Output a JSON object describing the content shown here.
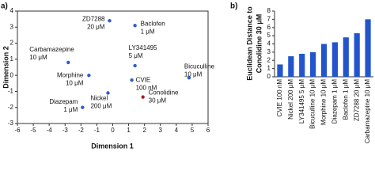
{
  "chart_data": [
    {
      "type": "scatter",
      "panel_label": "a)",
      "xlabel": "Dimension 1",
      "ylabel": "Dimension 2",
      "xlim": [
        -6,
        6
      ],
      "xticks": [
        -6,
        -5,
        -4,
        -3,
        -2,
        -1,
        0,
        1,
        2,
        3,
        4,
        5,
        6
      ],
      "ylim": [
        -3,
        4
      ],
      "yticks": [
        -3,
        -2,
        -1,
        0,
        1,
        2,
        3,
        4
      ],
      "point_labels": [
        [
          "ZD7288",
          "20 μM"
        ],
        [
          "Baclofen",
          "1 μM"
        ],
        [
          "Carbamazepine",
          "10 μM"
        ],
        [
          "LY341495",
          "5 μM"
        ],
        [
          "Morphine",
          "10 μM"
        ],
        [
          "CVIE",
          "100 nM"
        ],
        [
          "Bicuculline",
          "10 μM"
        ],
        [
          "Nickel",
          "200 μM"
        ],
        [
          "Conolidine",
          "30 μM"
        ],
        [
          "Diazepam",
          "1 μM"
        ]
      ],
      "x": [
        -0.2,
        1.4,
        -2.8,
        1.4,
        -1.5,
        1.2,
        4.8,
        -0.3,
        1.9,
        -1.9
      ],
      "values": [
        3.4,
        3.1,
        0.8,
        0.6,
        0.0,
        -0.3,
        -0.15,
        -1.1,
        -1.35,
        -2.0
      ],
      "colors": [
        "#2f5fc4",
        "#2f5fc4",
        "#2f5fc4",
        "#2f5fc4",
        "#2f5fc4",
        "#2f5fc4",
        "#2f5fc4",
        "#2f5fc4",
        "#a3201f",
        "#2f5fc4"
      ]
    },
    {
      "type": "bar",
      "panel_label": "b)",
      "ylabel": [
        "Euclidean Distance to",
        "Conolidine 30 μM"
      ],
      "categories": [
        "CVIE 100 nM",
        "Nickel 200 μM",
        "LY341495 5 μM",
        "Bicuculline 10 μM",
        "Morphine 10 μM",
        "Diazepam 1 μM",
        "Baclofen 1 μM",
        "ZD7288 20 μM",
        "Carbamazepine 10 μM"
      ],
      "values": [
        1.5,
        2.5,
        2.8,
        3.0,
        4.0,
        4.2,
        4.8,
        5.3,
        7.0
      ],
      "color": "#2255cc",
      "ylim": [
        0,
        8
      ],
      "yticks": [
        0,
        1,
        2,
        3,
        4,
        5,
        6,
        7,
        8
      ]
    }
  ]
}
